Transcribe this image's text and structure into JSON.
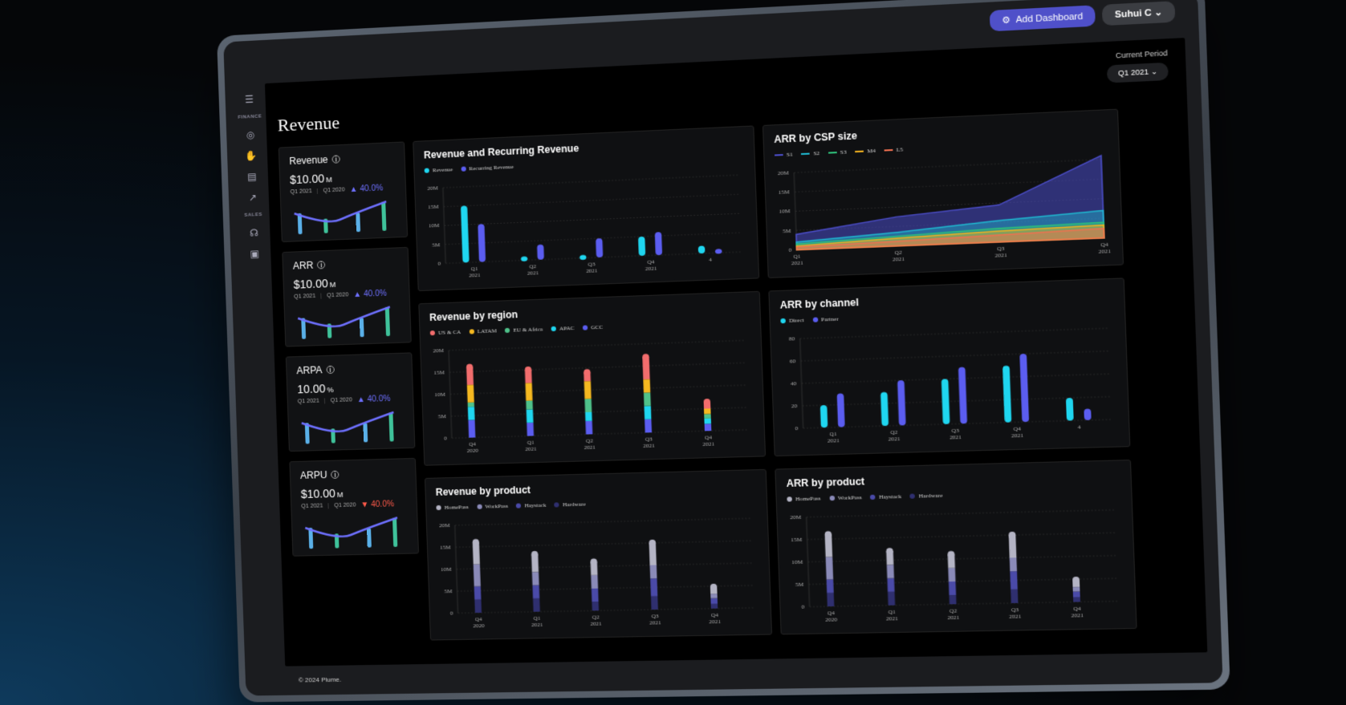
{
  "topbar": {
    "add_dashboard": "Add Dashboard",
    "user": "Suhui C"
  },
  "sidebar": {
    "sections": [
      "FINANCE",
      "SALES"
    ],
    "icons": [
      "menu-icon",
      "coins-icon",
      "hand-money-icon",
      "table-icon",
      "trend-icon",
      "headset-icon",
      "camera-icon"
    ]
  },
  "page": {
    "title": "Revenue"
  },
  "period": {
    "label": "Current Period",
    "value": "Q1 2021"
  },
  "footer": "© 2024 Plume.",
  "kpis": [
    {
      "title": "Revenue",
      "value": "$10.00",
      "unit": "M",
      "p1": "Q1 2021",
      "p2": "Q1 2020",
      "delta": "40.0%",
      "dir": "up"
    },
    {
      "title": "ARR",
      "value": "$10.00",
      "unit": "M",
      "p1": "Q1 2021",
      "p2": "Q1 2020",
      "delta": "40.0%",
      "dir": "up"
    },
    {
      "title": "ARPA",
      "value": "10.00",
      "unit": "%",
      "p1": "Q1 2021",
      "p2": "Q1 2020",
      "delta": "40.0%",
      "dir": "up"
    },
    {
      "title": "ARPU",
      "value": "$10.00",
      "unit": "M",
      "p1": "Q1 2021",
      "p2": "Q1 2020",
      "delta": "40.0%",
      "dir": "down"
    }
  ],
  "colors": {
    "cyan": "#1fd6f0",
    "indigo": "#5b5df0",
    "up": "#6e70ff",
    "down": "#ff5a4a"
  },
  "chart_data": [
    {
      "id": "rev_recurring",
      "type": "bar",
      "title": "Revenue and Recurring Revenue",
      "categories": [
        "Q1\n2021",
        "Q2\n2021",
        "Q3\n2021",
        "Q4\n2021",
        "4"
      ],
      "yticks": [
        "0",
        "5M",
        "10M",
        "15M",
        "20M"
      ],
      "ylim": [
        0,
        20
      ],
      "series": [
        {
          "name": "Revenue",
          "color": "#1fd6f0",
          "values": [
            15,
            1,
            0.8,
            5,
            2
          ]
        },
        {
          "name": "Recurring Revenue",
          "color": "#5b5df0",
          "values": [
            10,
            4,
            5,
            6,
            1
          ]
        }
      ]
    },
    {
      "id": "arr_csp",
      "type": "area",
      "title": "ARR by CSP size",
      "categories": [
        "Q1\n2021",
        "Q2\n2021",
        "Q3\n2021",
        "Q4\n2021"
      ],
      "yticks": [
        "0",
        "5M",
        "10M",
        "15M",
        "20M"
      ],
      "ylim": [
        0,
        20
      ],
      "series": [
        {
          "name": "S1",
          "color": "#4b4dc8",
          "values": [
            4,
            7.5,
            9.5,
            21
          ]
        },
        {
          "name": "S2",
          "color": "#1fb8d0",
          "values": [
            2,
            3.5,
            5.5,
            7
          ]
        },
        {
          "name": "S3",
          "color": "#2fc07a",
          "values": [
            1.5,
            2.5,
            3.5,
            4
          ]
        },
        {
          "name": "M4",
          "color": "#f0b020",
          "values": [
            1,
            2,
            2.8,
            3.3
          ]
        },
        {
          "name": "L5",
          "color": "#f07050",
          "values": [
            0.7,
            1.2,
            1.8,
            2.4
          ]
        }
      ]
    },
    {
      "id": "rev_region",
      "type": "bar",
      "title": "Revenue by region",
      "categories": [
        "Q4\n2020",
        "Q1\n2021",
        "Q2\n2021",
        "Q3\n2021",
        "Q4\n2021"
      ],
      "yticks": [
        "0",
        "5M",
        "10M",
        "15M",
        "20M"
      ],
      "ylim": [
        0,
        20
      ],
      "stacked": true,
      "series": [
        {
          "name": "US & CA",
          "color": "#f26d6d",
          "values": [
            4,
            3,
            2,
            5,
            1.5
          ]
        },
        {
          "name": "LATAM",
          "color": "#f5b820",
          "values": [
            4,
            4,
            4,
            3,
            1.2
          ]
        },
        {
          "name": "EU & Africa",
          "color": "#4fc28a",
          "values": [
            1,
            2,
            3,
            3,
            1
          ]
        },
        {
          "name": "APAC",
          "color": "#1fd6f0",
          "values": [
            3,
            3,
            2,
            3,
            1.2
          ]
        },
        {
          "name": "GCC",
          "color": "#5b5df0",
          "values": [
            4,
            3,
            3,
            3,
            1.6
          ]
        }
      ]
    },
    {
      "id": "arr_channel",
      "type": "bar",
      "title": "ARR by channel",
      "categories": [
        "Q1\n2021",
        "Q2\n2021",
        "Q3\n2021",
        "Q4\n2021",
        "4"
      ],
      "yticks": [
        "0",
        "20",
        "40",
        "60",
        "80"
      ],
      "ylim": [
        0,
        80
      ],
      "series": [
        {
          "name": "Direct",
          "color": "#1fd6f0",
          "values": [
            20,
            30,
            40,
            50,
            20
          ]
        },
        {
          "name": "Partner",
          "color": "#5b5df0",
          "values": [
            30,
            40,
            50,
            60,
            10
          ]
        }
      ]
    },
    {
      "id": "rev_product",
      "type": "bar",
      "title": "Revenue by product",
      "categories": [
        "Q4\n2020",
        "Q1\n2021",
        "Q2\n2021",
        "Q3\n2021",
        "Q4\n2021"
      ],
      "yticks": [
        "0",
        "5M",
        "10M",
        "15M",
        "20M"
      ],
      "ylim": [
        0,
        20
      ],
      "stacked": true,
      "series": [
        {
          "name": "HomePass",
          "color": "#b4b4c4",
          "values": [
            5,
            4,
            3,
            5,
            1.5
          ]
        },
        {
          "name": "WorkPass",
          "color": "#8a8ab8",
          "values": [
            5,
            3,
            3,
            3,
            1
          ]
        },
        {
          "name": "Haystack",
          "color": "#4a4aa8",
          "values": [
            3,
            3,
            3,
            4,
            1.3
          ]
        },
        {
          "name": "Hardware",
          "color": "#2f2f6f",
          "values": [
            3,
            3,
            2,
            3,
            1
          ]
        }
      ]
    },
    {
      "id": "arr_product",
      "type": "bar",
      "title": "ARR by product",
      "categories": [
        "Q4\n2020",
        "Q1\n2021",
        "Q2\n2021",
        "Q3\n2021",
        "Q4\n2021"
      ],
      "yticks": [
        "0",
        "5M",
        "10M",
        "15M",
        "20M"
      ],
      "ylim": [
        0,
        20
      ],
      "stacked": true,
      "series": [
        {
          "name": "HomePass",
          "color": "#b4b4c4",
          "values": [
            5,
            3,
            3,
            5,
            1.5
          ]
        },
        {
          "name": "WorkPass",
          "color": "#8a8ab8",
          "values": [
            5,
            3,
            3,
            3,
            1
          ]
        },
        {
          "name": "Haystack",
          "color": "#4a4aa8",
          "values": [
            3,
            3,
            3,
            4,
            1.3
          ]
        },
        {
          "name": "Hardware",
          "color": "#2f2f6f",
          "values": [
            3,
            3,
            2,
            3,
            1
          ]
        }
      ]
    }
  ]
}
